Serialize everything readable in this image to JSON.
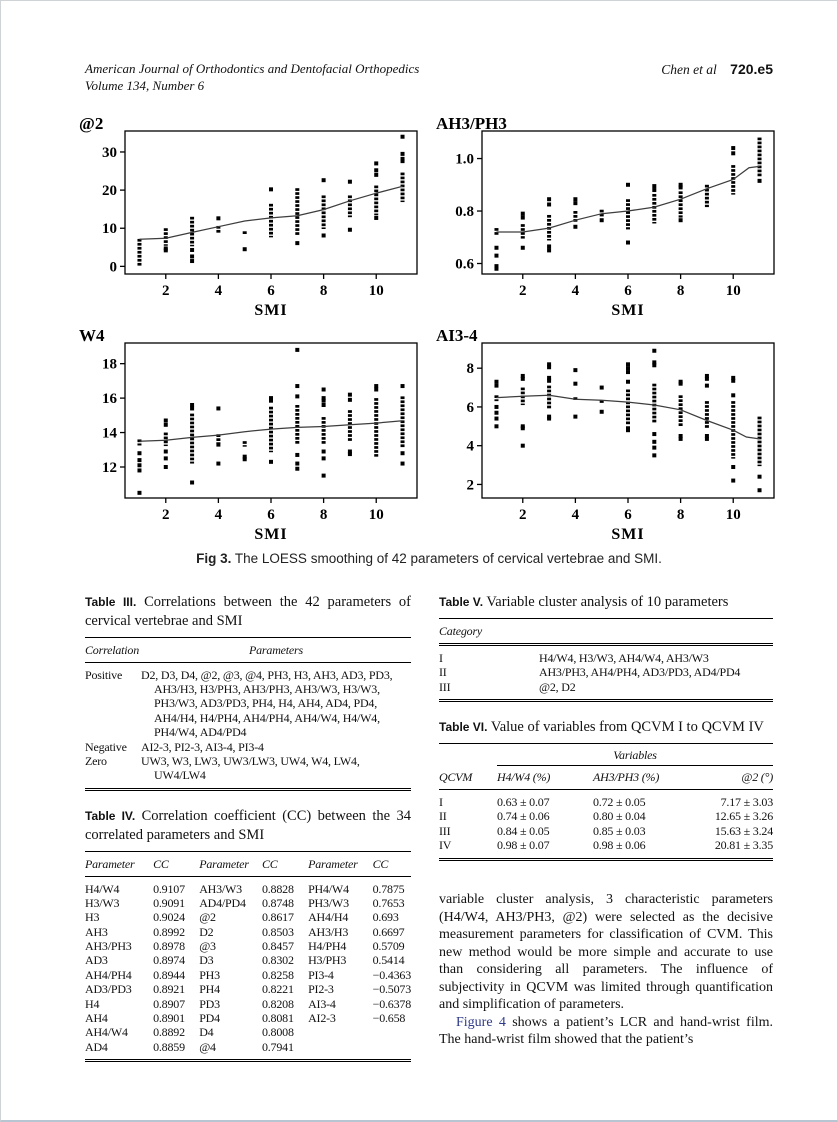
{
  "header": {
    "journal": "American Journal of Orthodontics and Dentofacial Orthopedics",
    "volume": "Volume 134, Number 6",
    "authors": "Chen et al",
    "page_number": "720.e5"
  },
  "figure": {
    "caption_label": "Fig 3.",
    "caption_text": "The LOESS smoothing of 42 parameters of cervical vertebrae and SMI.",
    "xlabel": "SMI",
    "x_ticks": [
      2,
      4,
      6,
      8,
      10
    ],
    "plots": [
      {
        "title": "@2",
        "type": "scatter",
        "xlim": [
          0.45,
          11.55
        ],
        "ylim": [
          -2,
          35.5
        ],
        "y_ticks": [
          [
            0,
            "0"
          ],
          [
            10,
            "10"
          ],
          [
            20,
            "20"
          ],
          [
            30,
            "30"
          ]
        ],
        "loess": [
          [
            1,
            7.1
          ],
          [
            2,
            7.4
          ],
          [
            3,
            8.9
          ],
          [
            4,
            10.4
          ],
          [
            5,
            11.9
          ],
          [
            6,
            12.7
          ],
          [
            7,
            13.3
          ],
          [
            8,
            14.9
          ],
          [
            9,
            17.2
          ],
          [
            10,
            19.2
          ],
          [
            11,
            21.0
          ]
        ],
        "columns": [
          {
            "x": 1,
            "strip": [
              0,
              7.2
            ],
            "dots": []
          },
          {
            "x": 2,
            "strip": [
              5.8,
              10
            ],
            "dots": [
              4.2,
              4.7
            ]
          },
          {
            "x": 3,
            "strip": [
              5.5,
              13
            ],
            "dots": [
              1.4,
              2.6,
              4.3
            ]
          },
          {
            "x": 4,
            "strip": [
              8.6,
              10.6
            ],
            "dots": [
              12.6
            ]
          },
          {
            "x": 5,
            "strip": [
              8.2,
              9.2
            ],
            "dots": [
              4.5
            ]
          },
          {
            "x": 6,
            "strip": [
              7.7,
              16.4
            ],
            "dots": [
              20.2
            ]
          },
          {
            "x": 7,
            "strip": [
              8,
              20.5
            ],
            "dots": [
              6.1
            ]
          },
          {
            "x": 8,
            "strip": [
              9.8,
              18.6
            ],
            "dots": [
              22.6,
              8.1
            ]
          },
          {
            "x": 9,
            "strip": [
              12.9,
              18.6
            ],
            "dots": [
              22.2,
              9.6
            ]
          },
          {
            "x": 10,
            "strip": [
              13.4,
              21.2
            ],
            "dots": [
              27,
              25.2,
              24,
              12.7
            ]
          },
          {
            "x": 11,
            "strip": [
              17,
              24.6
            ],
            "dots": [
              34,
              29.5,
              28.2,
              27.6
            ]
          }
        ]
      },
      {
        "title": "AH3/PH3",
        "type": "scatter",
        "xlim": [
          0.45,
          11.55
        ],
        "ylim": [
          0.56,
          1.105
        ],
        "y_ticks": [
          [
            0.6,
            "0.6"
          ],
          [
            0.8,
            "0.8"
          ],
          [
            1.0,
            "1.0"
          ]
        ],
        "loess": [
          [
            1,
            0.72
          ],
          [
            2,
            0.72
          ],
          [
            3,
            0.735
          ],
          [
            4,
            0.765
          ],
          [
            5,
            0.79
          ],
          [
            6,
            0.8
          ],
          [
            7,
            0.815
          ],
          [
            8,
            0.845
          ],
          [
            9,
            0.885
          ],
          [
            10,
            0.92
          ],
          [
            10.6,
            0.965
          ],
          [
            11,
            0.97
          ]
        ],
        "columns": [
          {
            "x": 1,
            "strip": [
              0.705,
              0.735
            ],
            "dots": [
              0.66,
              0.63,
              0.59,
              0.58
            ]
          },
          {
            "x": 2,
            "strip": [
              0.695,
              0.75
            ],
            "dots": [
              0.79,
              0.775,
              0.66
            ]
          },
          {
            "x": 3,
            "strip": [
              0.69,
              0.785
            ],
            "dots": [
              0.845,
              0.825,
              0.665,
              0.65
            ]
          },
          {
            "x": 4,
            "strip": [
              0.755,
              0.8
            ],
            "dots": [
              0.845,
              0.83,
              0.74
            ]
          },
          {
            "x": 5,
            "strip": [
              0.775,
              0.805
            ],
            "dots": [
              0.765
            ]
          },
          {
            "x": 6,
            "strip": [
              0.73,
              0.845
            ],
            "dots": [
              0.9,
              0.68
            ]
          },
          {
            "x": 7,
            "strip": [
              0.755,
              0.865
            ],
            "dots": [
              0.895,
              0.88
            ]
          },
          {
            "x": 8,
            "strip": [
              0.775,
              0.875
            ],
            "dots": [
              0.9,
              0.89,
              0.765
            ]
          },
          {
            "x": 9,
            "strip": [
              0.815,
              0.9
            ],
            "dots": []
          },
          {
            "x": 10,
            "strip": [
              0.865,
              0.975
            ],
            "dots": [
              1.04,
              1.02
            ]
          },
          {
            "x": 11,
            "strip": [
              0.93,
              1.08
            ],
            "dots": [
              0.915
            ]
          }
        ]
      },
      {
        "title": "W4",
        "type": "scatter",
        "xlim": [
          0.45,
          11.55
        ],
        "ylim": [
          10.2,
          19.2
        ],
        "y_ticks": [
          [
            12,
            "12"
          ],
          [
            14,
            "14"
          ],
          [
            16,
            "16"
          ],
          [
            18,
            "18"
          ]
        ],
        "loess": [
          [
            1,
            13.5
          ],
          [
            2,
            13.55
          ],
          [
            3,
            13.72
          ],
          [
            4,
            13.85
          ],
          [
            5,
            14.05
          ],
          [
            6,
            14.2
          ],
          [
            7,
            14.3
          ],
          [
            8,
            14.35
          ],
          [
            9,
            14.45
          ],
          [
            10,
            14.55
          ],
          [
            11,
            14.68
          ]
        ],
        "columns": [
          {
            "x": 1,
            "strip": [
              13.25,
              13.6
            ],
            "dots": [
              12.8,
              12.4,
              12.1,
              11.8,
              10.5
            ]
          },
          {
            "x": 2,
            "strip": [
              13.3,
              14.0
            ],
            "dots": [
              14.7,
              14.45,
              12.9,
              12.5,
              12.0
            ]
          },
          {
            "x": 3,
            "strip": [
              12.2,
              15.1
            ],
            "dots": [
              15.6,
              15.4,
              11.1
            ]
          },
          {
            "x": 4,
            "strip": [
              13.35,
              13.9
            ],
            "dots": [
              15.4,
              13.3,
              12.2
            ]
          },
          {
            "x": 5,
            "strip": [
              13.2,
              13.5
            ],
            "dots": [
              12.6,
              12.45
            ]
          },
          {
            "x": 6,
            "strip": [
              12.9,
              15.5
            ],
            "dots": [
              16.0,
              15.85,
              12.3
            ]
          },
          {
            "x": 7,
            "strip": [
              13.3,
              15.6
            ],
            "dots": [
              18.8,
              16.7,
              16.1,
              12.7,
              12.2,
              11.9
            ]
          },
          {
            "x": 8,
            "strip": [
              13.3,
              14.9
            ],
            "dots": [
              16.5,
              16.0,
              15.85,
              15.6,
              12.9,
              12.5,
              11.5
            ]
          },
          {
            "x": 9,
            "strip": [
              13.5,
              15.3
            ],
            "dots": [
              16.2,
              15.9,
              12.9,
              12.75
            ]
          },
          {
            "x": 10,
            "strip": [
              12.6,
              16.0
            ],
            "dots": [
              16.7,
              16.5
            ]
          },
          {
            "x": 11,
            "strip": [
              13.1,
              16.1
            ],
            "dots": [
              16.7,
              12.8,
              12.2
            ]
          }
        ]
      },
      {
        "title": "AI3-4",
        "type": "scatter",
        "xlim": [
          0.45,
          11.55
        ],
        "ylim": [
          1.3,
          9.3
        ],
        "y_ticks": [
          [
            2,
            "2"
          ],
          [
            4,
            "4"
          ],
          [
            6,
            "6"
          ],
          [
            8,
            "8"
          ]
        ],
        "loess": [
          [
            1,
            6.48
          ],
          [
            2,
            6.55
          ],
          [
            3,
            6.6
          ],
          [
            4,
            6.4
          ],
          [
            5,
            6.35
          ],
          [
            6,
            6.25
          ],
          [
            7,
            6.1
          ],
          [
            8,
            5.85
          ],
          [
            9,
            5.3
          ],
          [
            10,
            4.8
          ],
          [
            10.5,
            4.45
          ],
          [
            11,
            4.35
          ]
        ],
        "columns": [
          {
            "x": 1,
            "strip": [
              6.3,
              6.6
            ],
            "dots": [
              7.3,
              7.1,
              6.0,
              5.7,
              5.4,
              5.0
            ]
          },
          {
            "x": 2,
            "strip": [
              6.1,
              7.0
            ],
            "dots": [
              7.6,
              7.45,
              5.0,
              4.9,
              4.0
            ]
          },
          {
            "x": 3,
            "strip": [
              5.9,
              7.1
            ],
            "dots": [
              8.2,
              8.05,
              7.5,
              7.35,
              5.5,
              5.4
            ]
          },
          {
            "x": 4,
            "strip": [
              6.35,
              6.5
            ],
            "dots": [
              7.9,
              7.2,
              5.5
            ]
          },
          {
            "x": 5,
            "strip": [
              6.2,
              6.35
            ],
            "dots": [
              7.0,
              5.75
            ]
          },
          {
            "x": 6,
            "strip": [
              5.1,
              6.9
            ],
            "dots": [
              8.2,
              8.0,
              7.8,
              7.3,
              4.9,
              4.8
            ]
          },
          {
            "x": 7,
            "strip": [
              5.2,
              7.2
            ],
            "dots": [
              8.9,
              8.3,
              8.15,
              4.6,
              4.2,
              3.9,
              3.5
            ]
          },
          {
            "x": 8,
            "strip": [
              5.0,
              6.6
            ],
            "dots": [
              7.3,
              7.2,
              4.5,
              4.35
            ]
          },
          {
            "x": 9,
            "strip": [
              4.9,
              6.3
            ],
            "dots": [
              7.6,
              7.45,
              7.1,
              4.5,
              4.35
            ]
          },
          {
            "x": 10,
            "strip": [
              3.4,
              6.3
            ],
            "dots": [
              7.5,
              7.35,
              6.6,
              2.9,
              2.2
            ]
          },
          {
            "x": 11,
            "strip": [
              3.0,
              5.5
            ],
            "dots": [
              2.4,
              1.7
            ]
          }
        ]
      }
    ]
  },
  "table3": {
    "label": "Table III.",
    "title": "Correlations between the 42 parameters of cervical vertebrae and SMI",
    "headers": [
      "Correlation",
      "Parameters"
    ],
    "rows": [
      [
        "Positive",
        "D2, D3, D4, @2, @3, @4, PH3, H3, AH3, AD3, PD3, AH3/H3, H3/PH3, AH3/PH3, AH3/W3, H3/W3, PH3/W3, AD3/PD3, PH4, H4, AH4, AD4, PD4, AH4/H4, H4/PH4, AH4/PH4, AH4/W4, H4/W4, PH4/W4, AD4/PD4"
      ],
      [
        "Negative",
        "AI2-3, PI2-3, AI3-4, PI3-4"
      ],
      [
        "Zero",
        "UW3, W3, LW3, UW3/LW3, UW4, W4, LW4, UW4/LW4"
      ]
    ]
  },
  "table4": {
    "label": "Table IV.",
    "title": "Correlation coefficient (CC) between the 34 correlated parameters and SMI",
    "headers": [
      "Parameter",
      "CC",
      "Parameter",
      "CC",
      "Parameter",
      "CC"
    ],
    "rows": [
      [
        "H4/W4",
        "0.9107",
        "AH3/W3",
        "0.8828",
        "PH4/W4",
        "0.7875"
      ],
      [
        "H3/W3",
        "0.9091",
        "AD4/PD4",
        "0.8748",
        "PH3/W3",
        "0.7653"
      ],
      [
        "H3",
        "0.9024",
        "@2",
        "0.8617",
        "AH4/H4",
        "0.693"
      ],
      [
        "AH3",
        "0.8992",
        "D2",
        "0.8503",
        "AH3/H3",
        "0.6697"
      ],
      [
        "AH3/PH3",
        "0.8978",
        "@3",
        "0.8457",
        "H4/PH4",
        "0.5709"
      ],
      [
        "AD3",
        "0.8974",
        "D3",
        "0.8302",
        "H3/PH3",
        "0.5414"
      ],
      [
        "AH4/PH4",
        "0.8944",
        "PH3",
        "0.8258",
        "PI3-4",
        "−0.4363"
      ],
      [
        "AD3/PD3",
        "0.8921",
        "PH4",
        "0.8221",
        "PI2-3",
        "−0.5073"
      ],
      [
        "H4",
        "0.8907",
        "PD3",
        "0.8208",
        "AI3-4",
        "−0.6378"
      ],
      [
        "AH4",
        "0.8901",
        "PD4",
        "0.8081",
        "AI2-3",
        "−0.658"
      ],
      [
        "AH4/W4",
        "0.8892",
        "D4",
        "0.8008",
        "",
        ""
      ],
      [
        "AD4",
        "0.8859",
        "@4",
        "0.7941",
        "",
        ""
      ]
    ]
  },
  "table5": {
    "label": "Table V.",
    "title": "Variable cluster analysis of 10 parameters",
    "headers": [
      "Category"
    ],
    "rows": [
      [
        "I",
        "H4/W4, H3/W3, AH4/W4, AH3/W3"
      ],
      [
        "II",
        "AH3/PH3, AH4/PH4, AD3/PD3, AD4/PD4"
      ],
      [
        "III",
        "@2, D2"
      ]
    ]
  },
  "table6": {
    "label": "Table VI.",
    "title": "Value of variables from QCVM I to QCVM IV",
    "group_header": "Variables",
    "headers": [
      "QCVM",
      "H4/W4 (%)",
      "AH3/PH3 (%)",
      "@2 (°)"
    ],
    "rows": [
      [
        "I",
        "0.63 ± 0.07",
        "0.72 ± 0.05",
        "7.17 ± 3.03"
      ],
      [
        "II",
        "0.74 ± 0.06",
        "0.80 ± 0.04",
        "12.65 ± 3.26"
      ],
      [
        "III",
        "0.84 ± 0.05",
        "0.85 ± 0.03",
        "15.63 ± 3.24"
      ],
      [
        "IV",
        "0.98 ± 0.07",
        "0.98 ± 0.06",
        "20.81 ± 3.35"
      ]
    ]
  },
  "body": {
    "para1": "variable cluster analysis, 3 characteristic parameters (H4/W4, AH3/PH3, @2) were selected as the decisive measurement parameters for classification of CVM. This new method would be more simple and accurate to use than considering all parameters. The influence of subjectivity in QCVM was limited through quantification and simplification of parameters.",
    "para2_link": "Figure 4",
    "para2_rest": " shows a patient’s LCR and hand-wrist film. The hand-wrist film showed that the patient’s"
  }
}
